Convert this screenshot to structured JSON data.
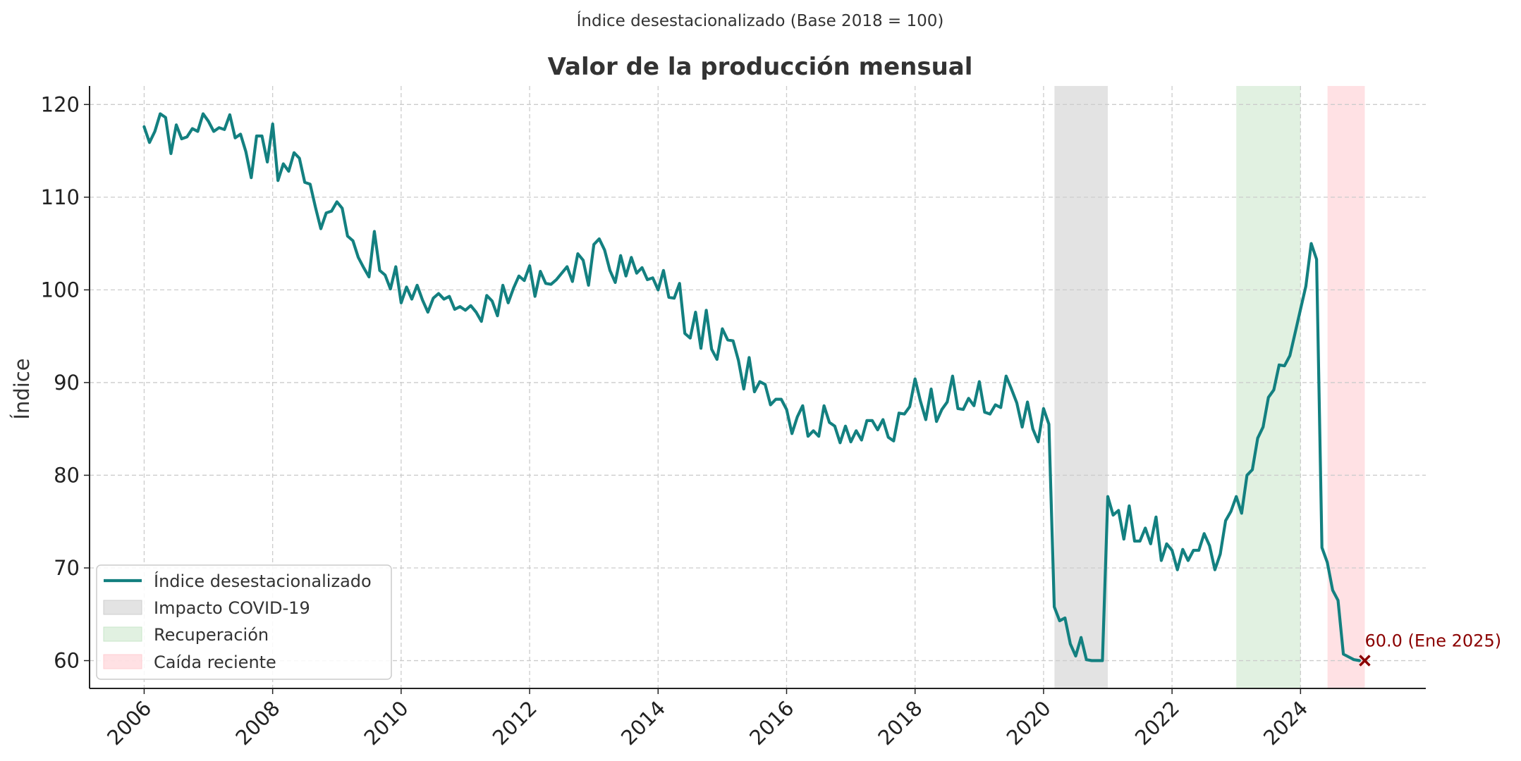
{
  "chart_data": {
    "type": "line",
    "suptitle": "Índice desestacionalizado (Base 2018 = 100)",
    "title": "Valor de la producción mensual",
    "xlabel": "",
    "ylabel": "Índice",
    "xlim": [
      2005.15,
      2025.95
    ],
    "ylim": [
      57,
      122
    ],
    "x_ticks": [
      2006,
      2008,
      2010,
      2012,
      2014,
      2016,
      2018,
      2020,
      2022,
      2024
    ],
    "x_tick_labels": [
      "2006",
      "2008",
      "2010",
      "2012",
      "2014",
      "2016",
      "2018",
      "2020",
      "2022",
      "2024"
    ],
    "y_ticks": [
      60,
      70,
      80,
      90,
      100,
      110,
      120
    ],
    "y_tick_labels": [
      "60",
      "70",
      "80",
      "90",
      "100",
      "110",
      "120"
    ],
    "grid": true,
    "legend_position": "lower-left",
    "colors": {
      "line": "#138080",
      "covid": "#cccccc",
      "recovery": "#c8e6c9",
      "drop": "#ffcdd2",
      "annotation": "#8b0000"
    },
    "series": [
      {
        "name": "Índice desestacionalizado",
        "start": "2006-01",
        "frequency": "monthly",
        "values": [
          117.6,
          115.9,
          117.1,
          119.0,
          118.6,
          114.7,
          117.8,
          116.3,
          116.5,
          117.4,
          117.1,
          119.0,
          118.2,
          117.1,
          117.5,
          117.3,
          118.9,
          116.4,
          116.8,
          114.9,
          112.1,
          116.6,
          116.6,
          113.8,
          117.9,
          111.8,
          113.6,
          112.8,
          114.8,
          114.2,
          111.6,
          111.4,
          108.9,
          106.6,
          108.3,
          108.5,
          109.5,
          108.8,
          105.8,
          105.3,
          103.5,
          102.4,
          101.4,
          106.3,
          102.1,
          101.6,
          100.1,
          102.5,
          98.6,
          100.3,
          99.0,
          100.5,
          98.9,
          97.6,
          99.1,
          99.6,
          99.0,
          99.3,
          97.9,
          98.2,
          97.8,
          98.3,
          97.6,
          96.6,
          99.4,
          98.8,
          97.2,
          100.5,
          98.6,
          100.2,
          101.5,
          101.0,
          102.6,
          99.3,
          102.0,
          100.7,
          100.6,
          101.1,
          101.8,
          102.5,
          100.9,
          103.9,
          103.2,
          100.5,
          104.9,
          105.5,
          104.3,
          102.1,
          100.8,
          103.7,
          101.5,
          103.5,
          101.8,
          102.4,
          101.1,
          101.3,
          100.0,
          102.1,
          99.2,
          99.1,
          100.7,
          95.3,
          94.8,
          97.6,
          93.7,
          97.8,
          93.6,
          92.5,
          95.8,
          94.6,
          94.5,
          92.4,
          89.3,
          92.7,
          89.0,
          90.1,
          89.8,
          87.6,
          88.2,
          88.2,
          87.1,
          84.5,
          86.3,
          87.5,
          84.2,
          84.8,
          84.2,
          87.5,
          85.7,
          85.3,
          83.5,
          85.3,
          83.6,
          84.8,
          83.8,
          85.9,
          85.9,
          84.9,
          86.0,
          84.1,
          83.7,
          86.7,
          86.6,
          87.4,
          90.4,
          88.0,
          86.0,
          89.3,
          85.8,
          87.1,
          87.9,
          90.7,
          87.2,
          87.1,
          88.3,
          87.5,
          90.1,
          86.8,
          86.6,
          87.6,
          87.3,
          90.7,
          89.3,
          87.8,
          85.2,
          87.9,
          85.0,
          83.6,
          87.2,
          85.5,
          65.8,
          64.3,
          64.6,
          61.8,
          60.5,
          62.5,
          60.1,
          60.0,
          60.0,
          60.0,
          77.7,
          75.7,
          76.2,
          73.1,
          76.7,
          72.9,
          72.9,
          74.3,
          72.6,
          75.5,
          70.8,
          72.6,
          71.9,
          69.8,
          72.0,
          70.8,
          71.9,
          71.9,
          73.7,
          72.4,
          69.8,
          71.5,
          75.1,
          76.1,
          77.7,
          75.9,
          80.0,
          80.6,
          84.0,
          85.2,
          88.4,
          89.2,
          91.9,
          91.8,
          92.9,
          95.4,
          97.9,
          100.4,
          105.0,
          103.3,
          72.2,
          70.6,
          67.6,
          66.5,
          60.7,
          60.4,
          60.1,
          60.0
        ]
      }
    ],
    "shaded_regions": [
      {
        "label": "Impacto COVID-19",
        "start": 2020.17,
        "end": 2021.0
      },
      {
        "label": "Recuperación",
        "start": 2023.0,
        "end": 2024.0
      },
      {
        "label": "Caída reciente",
        "start": 2024.42,
        "end": 2025.0
      }
    ],
    "annotation": {
      "text": "60.0 (Ene 2025)",
      "x": 2025.0,
      "y": 60.0,
      "marker": "x"
    },
    "legend": [
      "Índice desestacionalizado",
      "Impacto COVID-19",
      "Recuperación",
      "Caída reciente"
    ]
  }
}
